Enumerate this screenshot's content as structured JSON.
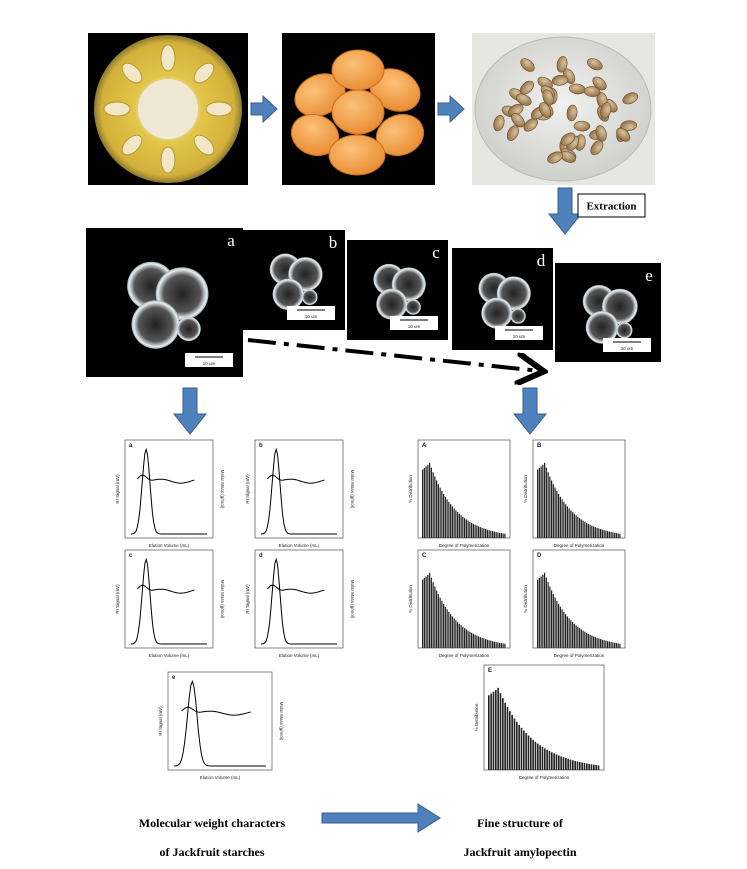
{
  "extraction_label": "Extraction",
  "micrographs": [
    {
      "label": "a",
      "scale": "10 um"
    },
    {
      "label": "b",
      "scale": "10 um"
    },
    {
      "label": "c",
      "scale": "10 um"
    },
    {
      "label": "d",
      "scale": "10 um"
    },
    {
      "label": "e",
      "scale": "10 um"
    }
  ],
  "gpc_panels": [
    {
      "label": "a",
      "x_title": "Elution Volume (mL)",
      "y_title": "RI Signal (mV)",
      "y2_title": "Molar Mass (g/mol)"
    },
    {
      "label": "b",
      "x_title": "Elution Volume (mL)",
      "y_title": "RI Signal (mV)",
      "y2_title": "Molar Mass (g/mol)"
    },
    {
      "label": "c",
      "x_title": "Elution Volume (mL)",
      "y_title": "RI Signal (mV)",
      "y2_title": "Molar Mass (g/mol)"
    },
    {
      "label": "d",
      "x_title": "Elution Volume (mL)",
      "y_title": "RI Signal (mV)",
      "y2_title": "Molar Mass (g/mol)"
    },
    {
      "label": "e",
      "x_title": "Elution Volume (mL)",
      "y_title": "RI Signal (mV)",
      "y2_title": "Molar Mass (g/mol)"
    }
  ],
  "dp_panels": [
    {
      "label": "A",
      "x_title": "Degree of Polymerization",
      "y_title": "% Distribution"
    },
    {
      "label": "B",
      "x_title": "Degree of Polymerization",
      "y_title": "% Distribution"
    },
    {
      "label": "C",
      "x_title": "Degree of Polymerization",
      "y_title": "% Distribution"
    },
    {
      "label": "D",
      "x_title": "Degree of Polymerization",
      "y_title": "% Distribution"
    },
    {
      "label": "E",
      "x_title": "Degree of Polymerization",
      "y_title": "% Distribution"
    }
  ],
  "captions": {
    "left": [
      "Molecular weight characters",
      "of Jackfruit starches"
    ],
    "right": [
      "Fine structure of",
      "Jackfruit amylopectin"
    ]
  }
}
